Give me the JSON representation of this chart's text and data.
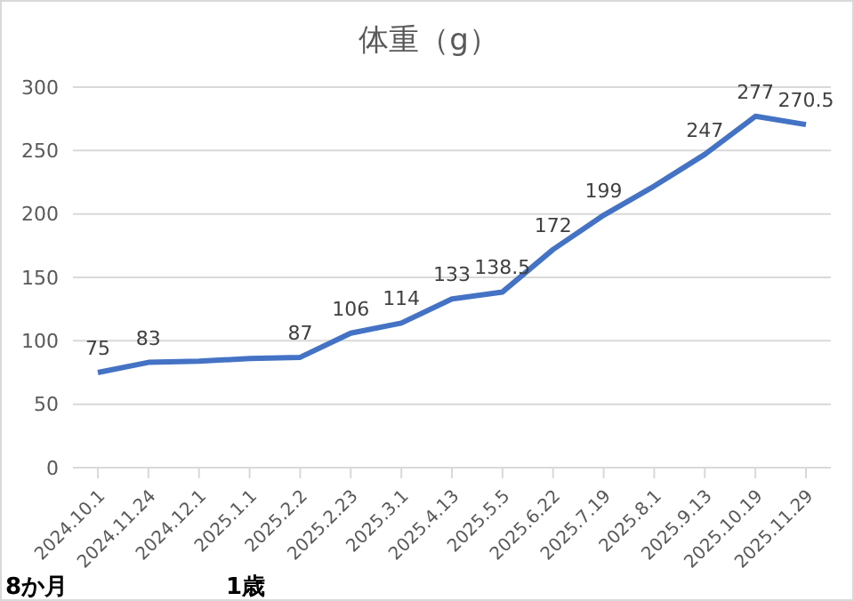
{
  "chart_data": {
    "type": "line",
    "title": "体重（g）",
    "categories": [
      "2024.10.1",
      "2024.11.24",
      "2024.12.1",
      "2025.1.1",
      "2025.2.2",
      "2025.2.23",
      "2025.3.1",
      "2025.4.13",
      "2025.5.5",
      "2025.6.22",
      "2025.7.19",
      "2025.8.1",
      "2025.9.13",
      "2025.10.19",
      "2025.11.29"
    ],
    "series": [
      {
        "color": "#4472c4",
        "values": [
          75,
          83,
          84,
          86,
          87,
          106,
          114,
          133,
          138.5,
          172,
          199,
          222,
          247,
          277,
          270.5
        ],
        "value_labels": [
          "75",
          "83",
          null,
          null,
          "87",
          "106",
          "114",
          "133",
          "138.5",
          "172",
          "199",
          null,
          "247",
          "277",
          "270.5"
        ]
      }
    ],
    "ylim": [
      0,
      300
    ],
    "yticks": [
      0,
      50,
      100,
      150,
      200,
      250,
      300
    ],
    "grid": "y",
    "marker": "none",
    "line_style": "solid",
    "legend": false,
    "annotations": [
      "8か月",
      "1歳"
    ]
  }
}
